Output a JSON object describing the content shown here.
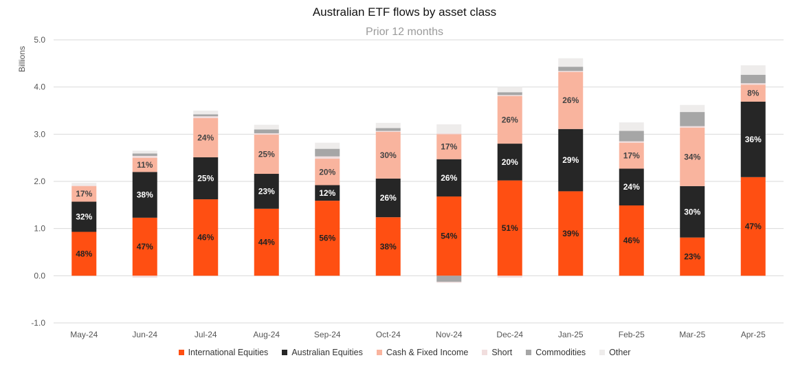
{
  "chart_data": {
    "type": "bar",
    "stacked": true,
    "title": "Australian ETF flows by asset class",
    "subtitle": "Prior 12 months",
    "ylabel": "Billions",
    "xlabel": "",
    "ylim": [
      -1.0,
      5.0
    ],
    "yticks": [
      "5.0",
      "4.0",
      "3.0",
      "2.0",
      "1.0",
      "0.0",
      "-1.0"
    ],
    "ytick_values": [
      5,
      4,
      3,
      2,
      1,
      0,
      -1
    ],
    "categories": [
      "May-24",
      "Jun-24",
      "Jul-24",
      "Aug-24",
      "Sep-24",
      "Oct-24",
      "Nov-24",
      "Dec-24",
      "Jan-25",
      "Feb-25",
      "Mar-25",
      "Apr-25"
    ],
    "legend_position": "bottom",
    "grid": true,
    "series": [
      {
        "name": "International Equities",
        "color": "#ff4f12",
        "label_color": "#222222",
        "values": [
          0.93,
          1.23,
          1.62,
          1.42,
          1.59,
          1.24,
          1.68,
          2.02,
          1.79,
          1.49,
          0.81,
          2.09
        ],
        "labels": [
          "48%",
          "47%",
          "46%",
          "44%",
          "56%",
          "38%",
          "54%",
          "51%",
          "39%",
          "46%",
          "23%",
          "47%"
        ]
      },
      {
        "name": "Australian Equities",
        "color": "#262626",
        "label_color": "#ffffff",
        "values": [
          0.64,
          0.97,
          0.89,
          0.74,
          0.33,
          0.82,
          0.79,
          0.78,
          1.32,
          0.78,
          1.09,
          1.6
        ],
        "labels": [
          "32%",
          "38%",
          "25%",
          "23%",
          "12%",
          "26%",
          "26%",
          "20%",
          "29%",
          "24%",
          "30%",
          "36%"
        ]
      },
      {
        "name": "Cash & Fixed Income",
        "color": "#f9b49e",
        "label_color": "#444444",
        "values": [
          0.33,
          0.3,
          0.83,
          0.83,
          0.56,
          0.99,
          0.53,
          1.01,
          1.21,
          0.55,
          1.24,
          0.36
        ],
        "labels": [
          "17%",
          "11%",
          "24%",
          "25%",
          "20%",
          "30%",
          "17%",
          "26%",
          "26%",
          "17%",
          "34%",
          "8%"
        ]
      },
      {
        "name": "Short",
        "color": "#f1dede",
        "label_color": "#444444",
        "values": [
          0.02,
          0.04,
          0.04,
          0.03,
          0.05,
          0.02,
          0.02,
          0.02,
          0.02,
          0.03,
          0.03,
          0.03
        ],
        "labels": [
          "",
          "",
          "",
          "",
          "",
          "",
          "",
          "",
          "",
          "",
          "",
          ""
        ]
      },
      {
        "name": "Commodities",
        "color": "#a6a6a6",
        "label_color": "#444444",
        "values": [
          0.0,
          0.05,
          0.04,
          0.08,
          0.16,
          0.06,
          -0.13,
          0.06,
          0.09,
          0.22,
          0.3,
          0.18
        ],
        "labels": [
          "",
          "",
          "",
          "",
          "",
          "",
          "",
          "",
          "",
          "",
          "",
          ""
        ]
      },
      {
        "name": "Other",
        "color": "#eeeceb",
        "label_color": "#444444",
        "values": [
          0.05,
          0.06,
          0.08,
          0.1,
          0.13,
          0.11,
          0.19,
          0.11,
          0.18,
          0.18,
          0.15,
          0.2
        ],
        "labels": [
          "",
          "",
          "",
          "",
          "",
          "",
          "",
          "",
          "",
          "",
          "",
          ""
        ]
      }
    ],
    "negative_stubs": [
      {
        "series": "Short",
        "values": [
          0,
          -0.04,
          0,
          0,
          0,
          0,
          -0.02,
          -0.04,
          0,
          0,
          0,
          0
        ]
      }
    ]
  }
}
